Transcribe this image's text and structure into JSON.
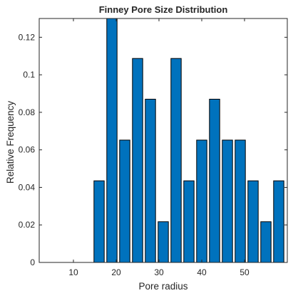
{
  "chart_data": {
    "type": "bar",
    "title": "Finney Pore Size Distribution",
    "xlabel": "Pore radius",
    "ylabel": "Relative Frequency",
    "xlim": [
      2,
      60
    ],
    "ylim": [
      0,
      0.13
    ],
    "x": [
      16,
      19,
      22,
      25,
      28,
      31,
      34,
      37,
      40,
      43,
      46,
      49,
      52,
      55,
      58
    ],
    "values": [
      0.0435,
      0.1304,
      0.0652,
      0.1087,
      0.087,
      0.0217,
      0.1087,
      0.0435,
      0.0652,
      0.087,
      0.0652,
      0.0652,
      0.0435,
      0.0217,
      0.0435
    ],
    "bar_width": 2.4,
    "xticks": [
      10,
      20,
      30,
      40,
      50
    ],
    "xtick_labels": [
      "10",
      "20",
      "30",
      "40",
      "50"
    ],
    "yticks": [
      0,
      0.02,
      0.04,
      0.06,
      0.08,
      0.1,
      0.12
    ],
    "ytick_labels": [
      "0",
      "0.02",
      "0.04",
      "0.06",
      "0.08",
      "0.1",
      "0.12"
    ],
    "bar_color": "#0072BD",
    "bar_edge_color": "#000000",
    "grid": false,
    "legend": false
  }
}
